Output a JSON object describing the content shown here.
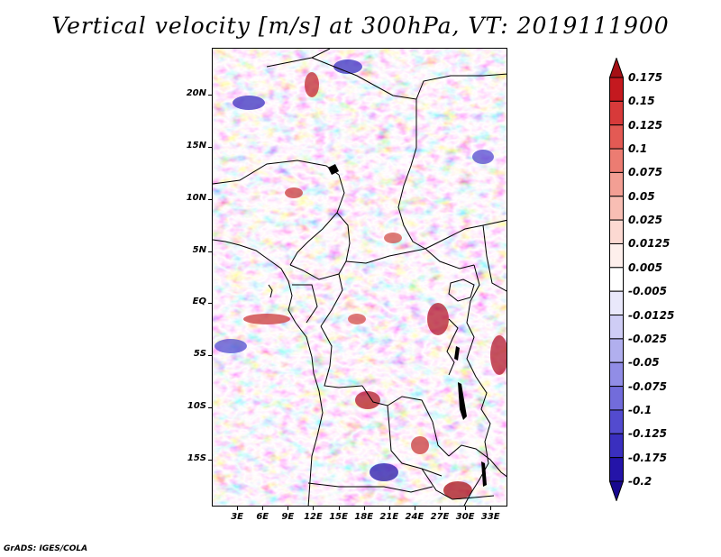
{
  "title": "Vertical velocity [m/s] at 300hPa, VT: 2019111900",
  "credit": "GrADS: IGES/COLA",
  "map": {
    "lon_range": [
      0,
      35
    ],
    "lat_range": [
      -19.5,
      24.5
    ],
    "lat_ticks": [
      {
        "value": 20,
        "label": "20N"
      },
      {
        "value": 15,
        "label": "15N"
      },
      {
        "value": 10,
        "label": "10N"
      },
      {
        "value": 5,
        "label": "5N"
      },
      {
        "value": 0,
        "label": "EQ"
      },
      {
        "value": -5,
        "label": "5S"
      },
      {
        "value": -10,
        "label": "10S"
      },
      {
        "value": -15,
        "label": "15S"
      }
    ],
    "lon_ticks": [
      {
        "value": 3,
        "label": "3E"
      },
      {
        "value": 6,
        "label": "6E"
      },
      {
        "value": 9,
        "label": "9E"
      },
      {
        "value": 12,
        "label": "12E"
      },
      {
        "value": 15,
        "label": "15E"
      },
      {
        "value": 18,
        "label": "18E"
      },
      {
        "value": 21,
        "label": "21E"
      },
      {
        "value": 24,
        "label": "24E"
      },
      {
        "value": 27,
        "label": "27E"
      },
      {
        "value": 30,
        "label": "30E"
      },
      {
        "value": 33,
        "label": "33E"
      }
    ]
  },
  "colorbar": {
    "levels": [
      "0.175",
      "0.15",
      "0.125",
      "0.1",
      "0.075",
      "0.05",
      "0.025",
      "0.0125",
      "0.005",
      "-0.005",
      "-0.0125",
      "-0.025",
      "-0.05",
      "-0.075",
      "-0.1",
      "-0.125",
      "-0.175",
      "-0.2"
    ],
    "colors": [
      "#a50f15",
      "#c4191f",
      "#d73a3a",
      "#e35a54",
      "#ec7c72",
      "#f39f94",
      "#f8beb4",
      "#fcd9d2",
      "#feefec",
      "#ffffff",
      "#e9e8fb",
      "#cfcdf5",
      "#b1afee",
      "#918de6",
      "#726cdb",
      "#534bcf",
      "#3a2fbf",
      "#2414a8",
      "#18088f"
    ]
  }
}
